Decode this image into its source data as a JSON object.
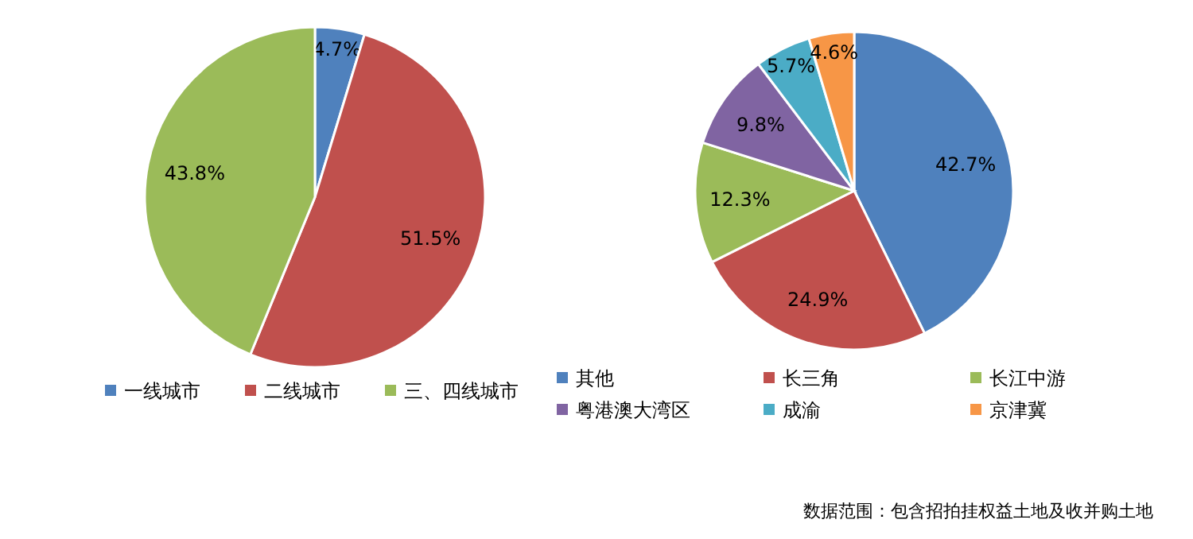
{
  "chart_data": [
    {
      "type": "pie",
      "categories": [
        "一线城市",
        "二线城市",
        "三、四线城市"
      ],
      "values": [
        4.7,
        51.5,
        43.8
      ],
      "value_labels": [
        "4.7%",
        "51.5%",
        "43.8%"
      ],
      "colors": [
        "#4f81bd",
        "#c0504d",
        "#9bbb59"
      ],
      "legend": "bottom"
    },
    {
      "type": "pie",
      "categories": [
        "其他",
        "长三角",
        "长江中游",
        "粤港澳大湾区",
        "成渝",
        "京津冀"
      ],
      "values": [
        42.7,
        24.9,
        12.3,
        9.8,
        5.7,
        4.6
      ],
      "value_labels": [
        "42.7%",
        "24.9%",
        "12.3%",
        "9.8%",
        "5.7%",
        "4.6%"
      ],
      "colors": [
        "#4f81bd",
        "#c0504d",
        "#9bbb59",
        "#8064a2",
        "#4bacc6",
        "#f79646"
      ],
      "legend": "bottom",
      "annotations": [
        "数据范围：包含招拍挂权益土地及收并购土地"
      ]
    }
  ]
}
